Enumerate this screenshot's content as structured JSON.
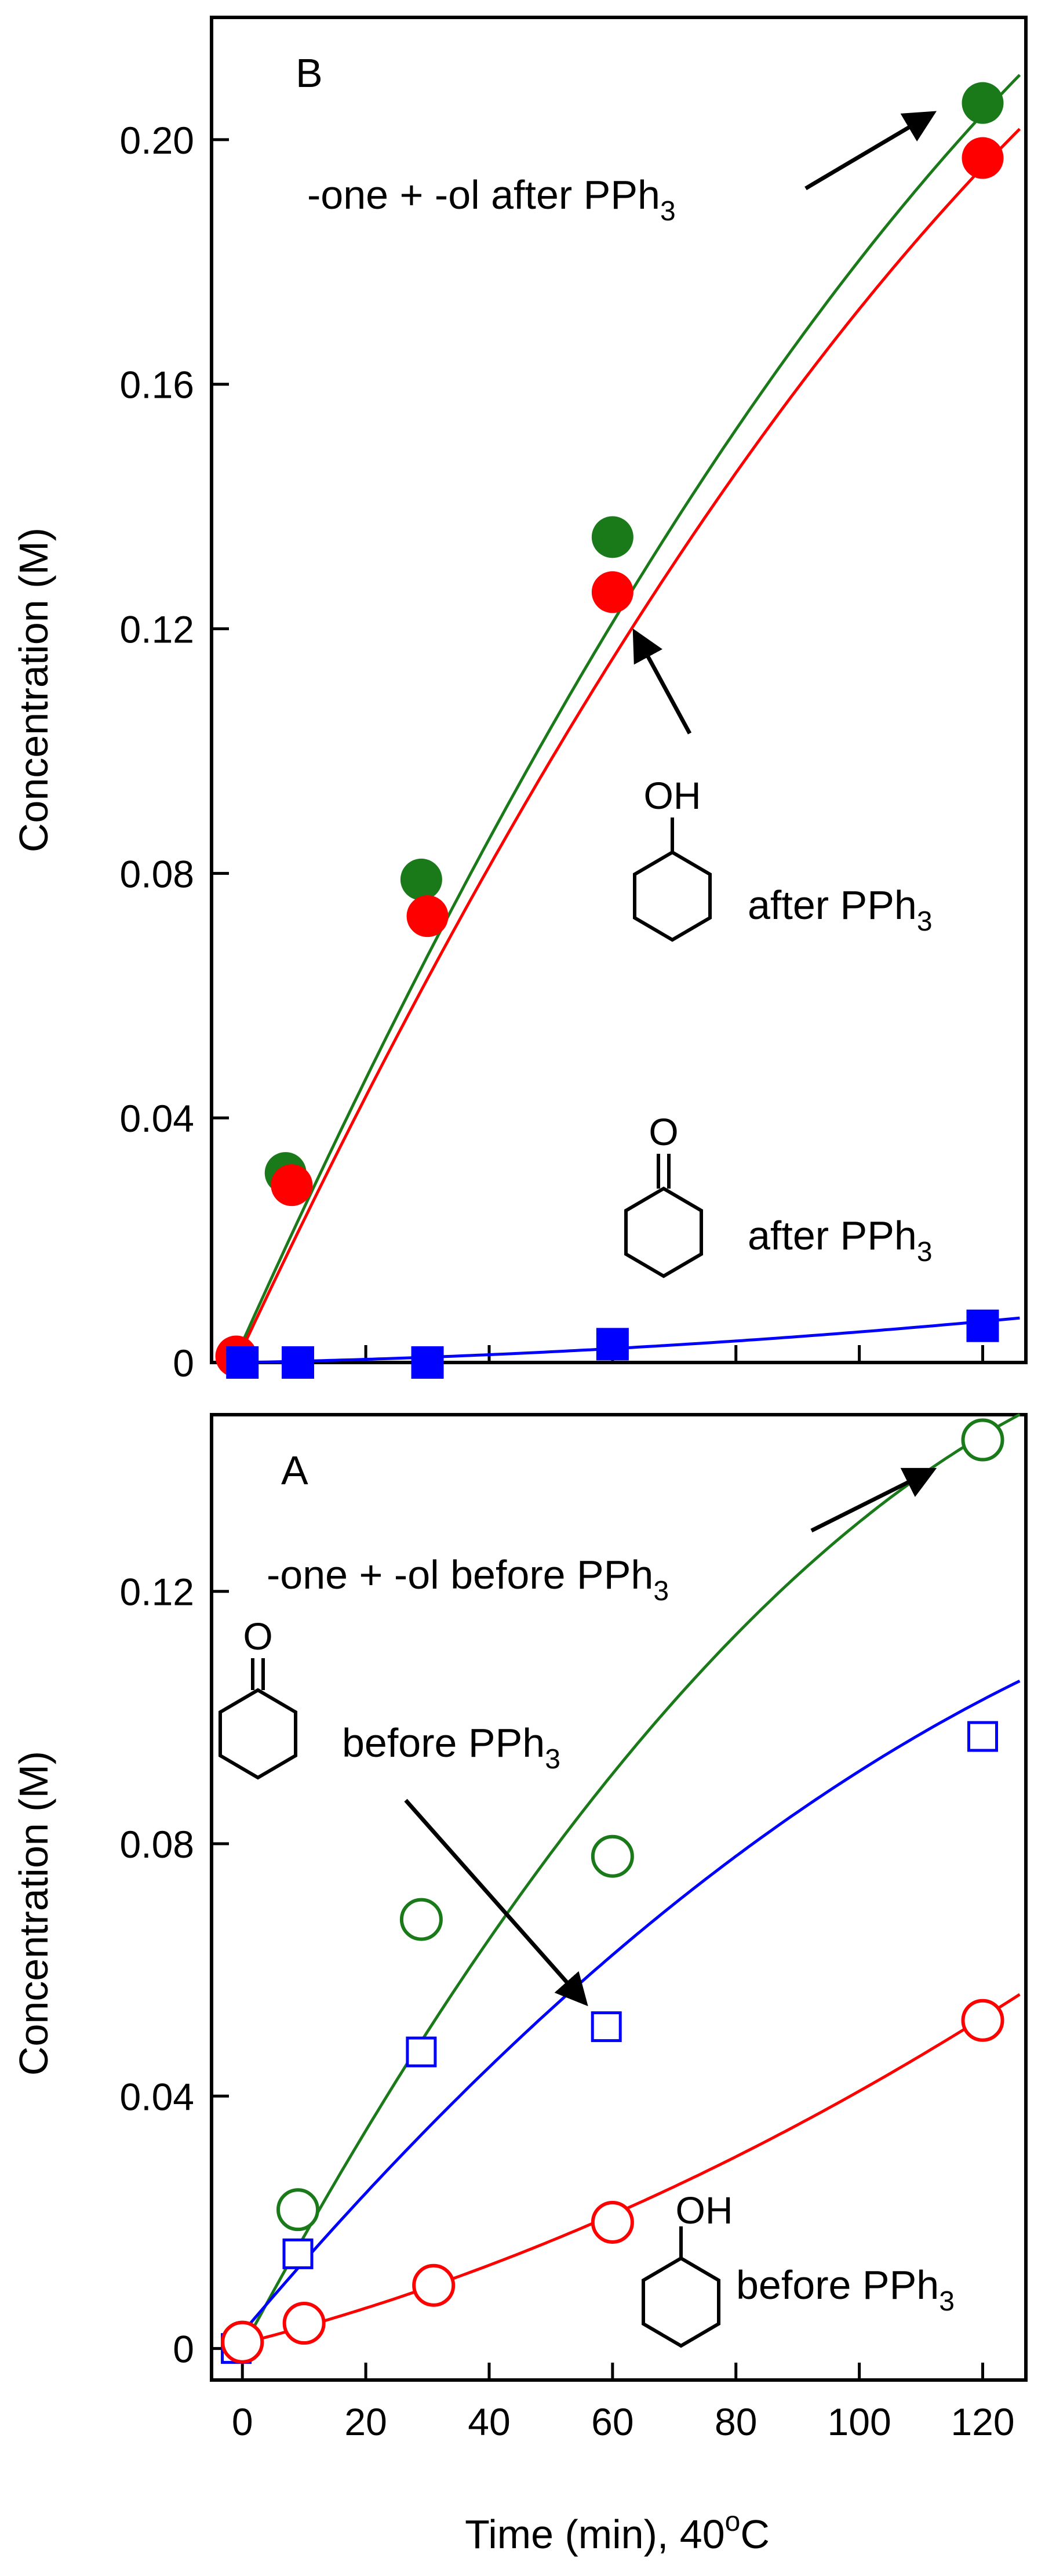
{
  "figure": {
    "xlabel": "Time (min), 40",
    "xlabel_sup": "o",
    "xlabel_tail": "C"
  },
  "chart_data": [
    {
      "type": "scatter",
      "panel": "B",
      "panel_label": "B",
      "ylabel": "Concentration  (M)",
      "ylim": [
        0,
        0.22
      ],
      "yticks": [
        0,
        0.04,
        0.08,
        0.12,
        0.16,
        0.2
      ],
      "ytick_labels": [
        "0",
        "0.04",
        "0.08",
        "0.12",
        "0.16",
        "0.20"
      ],
      "xlim": [
        -5,
        127
      ],
      "xticks": [
        0,
        20,
        40,
        60,
        80,
        100,
        120
      ],
      "xtick_labels": [
        "0",
        "20",
        "40",
        "60",
        "80",
        "100",
        "120"
      ],
      "show_xtick_labels": false,
      "series": [
        {
          "key": "one_ol_after",
          "color": "#1a7a1a",
          "marker": "filled-circle",
          "x": [
            7,
            29,
            60,
            120
          ],
          "y": [
            0.031,
            0.079,
            0.135,
            0.206
          ],
          "fit": [
            0.0033,
            0.00225,
            -4.8e-06
          ]
        },
        {
          "key": "ol_after",
          "color": "#ff0000",
          "marker": "filled-circle",
          "x": [
            -1,
            8,
            30,
            60,
            120
          ],
          "y": [
            0.001,
            0.029,
            0.073,
            0.126,
            0.197
          ],
          "fit": [
            0.0023,
            0.00215,
            -4.5e-06
          ]
        },
        {
          "key": "one_after",
          "color": "#0000ff",
          "marker": "filled-square",
          "x": [
            0,
            9,
            30,
            60,
            120
          ],
          "y": [
            0.0,
            0.0,
            0.0,
            0.003,
            0.006
          ],
          "fit": [
            0.0,
            2e-05,
            3e-07
          ]
        }
      ],
      "annotations": {
        "one_ol": {
          "text": "-one + -ol after PPh",
          "sub": "3"
        },
        "ol": {
          "text": "after PPh",
          "sub": "3",
          "group": "OH"
        },
        "one": {
          "text": "after PPh",
          "sub": "3",
          "group": "O"
        }
      }
    },
    {
      "type": "scatter",
      "panel": "A",
      "panel_label": "A",
      "ylabel": "Concentration  (M)",
      "ylim": [
        -0.005,
        0.148
      ],
      "yticks": [
        0,
        0.04,
        0.08,
        0.12
      ],
      "ytick_labels": [
        "0",
        "0.04",
        "0.08",
        "0.12"
      ],
      "xlim": [
        -5,
        127
      ],
      "xticks": [
        0,
        20,
        40,
        60,
        80,
        100,
        120
      ],
      "xtick_labels": [
        "0",
        "20",
        "40",
        "60",
        "80",
        "100",
        "120"
      ],
      "show_xtick_labels": true,
      "series": [
        {
          "key": "one_ol_before",
          "color": "#1a7a1a",
          "marker": "open-circle",
          "x": [
            0,
            9,
            29,
            60,
            120
          ],
          "y": [
            0.001,
            0.022,
            0.068,
            0.078,
            0.144
          ],
          "fit": [
            0.0,
            0.00183,
            -5.2e-06
          ]
        },
        {
          "key": "one_before",
          "color": "#0000ff",
          "marker": "open-square",
          "x": [
            -1,
            9,
            29,
            59,
            120
          ],
          "y": [
            0.0,
            0.015,
            0.047,
            0.051,
            0.097
          ],
          "fit": [
            0.0025,
            0.00116,
            -2.7e-06
          ]
        },
        {
          "key": "ol_before",
          "color": "#ff0000",
          "marker": "open-circle",
          "x": [
            0,
            10,
            31,
            60,
            120
          ],
          "y": [
            0.001,
            0.004,
            0.01,
            0.02,
            0.052
          ],
          "fit": [
            0.0008,
            0.00025,
            1.5e-06
          ]
        }
      ],
      "annotations": {
        "one_ol": {
          "text": "-one + -ol before PPh",
          "sub": "3"
        },
        "one": {
          "text": "before PPh",
          "sub": "3",
          "group": "O"
        },
        "ol": {
          "text": "before PPh",
          "sub": "3",
          "group": "OH"
        }
      }
    }
  ]
}
